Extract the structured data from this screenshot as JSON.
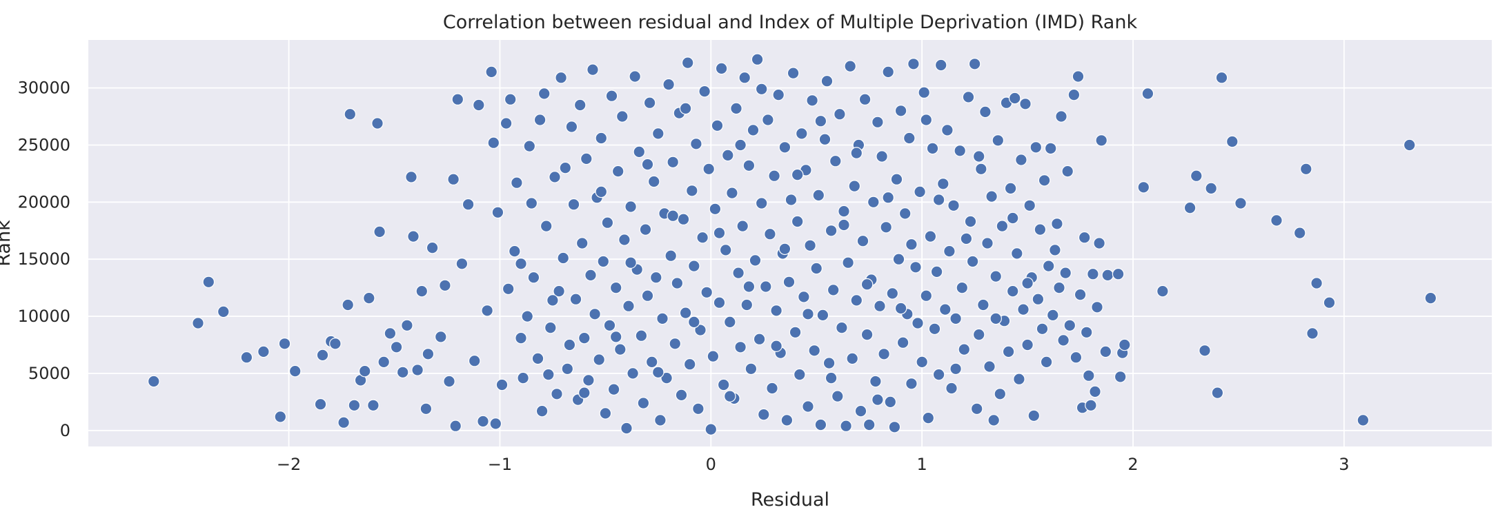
{
  "chart_data": {
    "type": "scatter",
    "title": "Correlation between residual and Index of Multiple Deprivation (IMD) Rank",
    "xlabel": "Residual",
    "ylabel": "Rank",
    "xlim": [
      -2.95,
      3.7
    ],
    "ylim": [
      -1400,
      34200
    ],
    "xticks": [
      -2,
      -1,
      0,
      1,
      2,
      3
    ],
    "xtick_labels": [
      "−2",
      "−1",
      "0",
      "1",
      "2",
      "3"
    ],
    "yticks": [
      0,
      5000,
      10000,
      15000,
      20000,
      25000,
      30000
    ],
    "ytick_labels": [
      "0",
      "5000",
      "10000",
      "15000",
      "20000",
      "25000",
      "30000"
    ],
    "grid": true,
    "style": {
      "background": "#eaeaf2",
      "marker_color": "#4c72b0",
      "grid_color": "#ffffff"
    },
    "points": [
      [
        -2.64,
        4300
      ],
      [
        -2.43,
        9400
      ],
      [
        -2.38,
        13000
      ],
      [
        -2.31,
        10400
      ],
      [
        -2.2,
        6400
      ],
      [
        -2.12,
        6900
      ],
      [
        -2.04,
        1200
      ],
      [
        -2.02,
        7600
      ],
      [
        -1.97,
        5200
      ],
      [
        -1.85,
        2300
      ],
      [
        -1.84,
        6600
      ],
      [
        -1.8,
        7800
      ],
      [
        -1.78,
        7600
      ],
      [
        -1.74,
        700
      ],
      [
        -1.72,
        11000
      ],
      [
        -1.71,
        27700
      ],
      [
        -1.69,
        2200
      ],
      [
        -1.66,
        4400
      ],
      [
        -1.64,
        5200
      ],
      [
        -1.62,
        11600
      ],
      [
        -1.6,
        2200
      ],
      [
        -1.58,
        26900
      ],
      [
        -1.57,
        17400
      ],
      [
        -1.55,
        6000
      ],
      [
        -1.52,
        8500
      ],
      [
        -1.49,
        7300
      ],
      [
        -1.46,
        5100
      ],
      [
        -1.44,
        9200
      ],
      [
        -1.42,
        22200
      ],
      [
        -1.41,
        17000
      ],
      [
        -1.39,
        5300
      ],
      [
        -1.37,
        12200
      ],
      [
        -1.35,
        1900
      ],
      [
        -1.34,
        6700
      ],
      [
        -1.32,
        16000
      ],
      [
        -1.28,
        8200
      ],
      [
        -1.26,
        12700
      ],
      [
        -1.24,
        4300
      ],
      [
        -1.22,
        22000
      ],
      [
        -1.21,
        400
      ],
      [
        -1.2,
        29000
      ],
      [
        -1.18,
        14600
      ],
      [
        -1.15,
        19800
      ],
      [
        -1.12,
        6100
      ],
      [
        -1.1,
        28500
      ],
      [
        -1.08,
        800
      ],
      [
        -1.06,
        10500
      ],
      [
        -1.04,
        31400
      ],
      [
        -1.03,
        25200
      ],
      [
        -1.02,
        600
      ],
      [
        -1.01,
        19100
      ],
      [
        -0.99,
        4000
      ],
      [
        -0.97,
        26900
      ],
      [
        -0.96,
        12400
      ],
      [
        -0.93,
        15700
      ],
      [
        -0.92,
        21700
      ],
      [
        -0.9,
        8100
      ],
      [
        -0.89,
        4600
      ],
      [
        -0.87,
        10000
      ],
      [
        -0.86,
        24900
      ],
      [
        -0.84,
        13400
      ],
      [
        -0.82,
        6300
      ],
      [
        -0.8,
        1700
      ],
      [
        -0.79,
        29500
      ],
      [
        -0.78,
        17900
      ],
      [
        -0.76,
        9000
      ],
      [
        -0.74,
        22200
      ],
      [
        -0.73,
        3200
      ],
      [
        -0.72,
        12200
      ],
      [
        -0.71,
        30900
      ],
      [
        -0.7,
        15100
      ],
      [
        -0.68,
        5400
      ],
      [
        -0.67,
        7500
      ],
      [
        -0.66,
        26600
      ],
      [
        -0.65,
        19800
      ],
      [
        -0.64,
        11500
      ],
      [
        -0.63,
        2700
      ],
      [
        -0.62,
        28500
      ],
      [
        -0.61,
        16400
      ],
      [
        -0.6,
        8100
      ],
      [
        -0.59,
        23800
      ],
      [
        -0.58,
        4400
      ],
      [
        -0.57,
        13600
      ],
      [
        -0.56,
        31600
      ],
      [
        -0.55,
        10200
      ],
      [
        -0.54,
        20400
      ],
      [
        -0.53,
        6200
      ],
      [
        -0.52,
        25600
      ],
      [
        -0.51,
        14800
      ],
      [
        -0.5,
        1500
      ],
      [
        -0.49,
        18200
      ],
      [
        -0.48,
        9200
      ],
      [
        -0.47,
        29300
      ],
      [
        -0.46,
        3600
      ],
      [
        -0.45,
        12500
      ],
      [
        -0.44,
        22700
      ],
      [
        -0.43,
        7100
      ],
      [
        -0.42,
        27500
      ],
      [
        -0.41,
        16700
      ],
      [
        -0.4,
        200
      ],
      [
        -0.39,
        10900
      ],
      [
        -0.38,
        19600
      ],
      [
        -0.37,
        5000
      ],
      [
        -0.36,
        31000
      ],
      [
        -0.35,
        14100
      ],
      [
        -0.34,
        24400
      ],
      [
        -0.33,
        8300
      ],
      [
        -0.32,
        2400
      ],
      [
        -0.31,
        17600
      ],
      [
        -0.3,
        11800
      ],
      [
        -0.29,
        28700
      ],
      [
        -0.28,
        6000
      ],
      [
        -0.27,
        21800
      ],
      [
        -0.26,
        13400
      ],
      [
        -0.25,
        26000
      ],
      [
        -0.24,
        900
      ],
      [
        -0.23,
        9800
      ],
      [
        -0.22,
        19000
      ],
      [
        -0.21,
        4600
      ],
      [
        -0.2,
        30300
      ],
      [
        -0.19,
        15300
      ],
      [
        -0.18,
        23500
      ],
      [
        -0.17,
        7600
      ],
      [
        -0.16,
        12900
      ],
      [
        -0.15,
        27800
      ],
      [
        -0.14,
        3100
      ],
      [
        -0.13,
        18500
      ],
      [
        -0.12,
        10300
      ],
      [
        -0.11,
        32200
      ],
      [
        -0.1,
        5800
      ],
      [
        -0.09,
        21000
      ],
      [
        -0.08,
        14400
      ],
      [
        -0.07,
        25100
      ],
      [
        -0.06,
        1900
      ],
      [
        -0.05,
        8800
      ],
      [
        -0.04,
        16900
      ],
      [
        -0.03,
        29700
      ],
      [
        -0.02,
        12100
      ],
      [
        -0.01,
        22900
      ],
      [
        0.0,
        100
      ],
      [
        0.01,
        6500
      ],
      [
        0.02,
        19400
      ],
      [
        0.03,
        26700
      ],
      [
        0.04,
        11200
      ],
      [
        0.05,
        31700
      ],
      [
        0.06,
        4000
      ],
      [
        0.07,
        15800
      ],
      [
        0.08,
        24100
      ],
      [
        0.09,
        9500
      ],
      [
        0.1,
        20800
      ],
      [
        0.11,
        2800
      ],
      [
        0.12,
        28200
      ],
      [
        0.13,
        13800
      ],
      [
        0.14,
        7300
      ],
      [
        0.15,
        17900
      ],
      [
        0.16,
        30900
      ],
      [
        0.17,
        11000
      ],
      [
        0.18,
        23200
      ],
      [
        0.19,
        5400
      ],
      [
        0.2,
        26300
      ],
      [
        0.21,
        14900
      ],
      [
        0.22,
        32500
      ],
      [
        0.23,
        8000
      ],
      [
        0.24,
        19900
      ],
      [
        0.25,
        1400
      ],
      [
        0.26,
        12600
      ],
      [
        0.27,
        27200
      ],
      [
        0.28,
        17200
      ],
      [
        0.29,
        3700
      ],
      [
        0.3,
        22300
      ],
      [
        0.31,
        10500
      ],
      [
        0.32,
        29400
      ],
      [
        0.33,
        6800
      ],
      [
        0.34,
        15500
      ],
      [
        0.35,
        24800
      ],
      [
        0.36,
        900
      ],
      [
        0.37,
        13000
      ],
      [
        0.38,
        20200
      ],
      [
        0.39,
        31300
      ],
      [
        0.4,
        8600
      ],
      [
        0.41,
        18300
      ],
      [
        0.42,
        4900
      ],
      [
        0.43,
        26000
      ],
      [
        0.44,
        11700
      ],
      [
        0.45,
        22800
      ],
      [
        0.46,
        2100
      ],
      [
        0.47,
        16200
      ],
      [
        0.48,
        28900
      ],
      [
        0.49,
        7000
      ],
      [
        0.5,
        14200
      ],
      [
        0.51,
        20600
      ],
      [
        0.52,
        500
      ],
      [
        0.53,
        10100
      ],
      [
        0.54,
        25500
      ],
      [
        0.55,
        30600
      ],
      [
        0.56,
        5900
      ],
      [
        0.57,
        17500
      ],
      [
        0.58,
        12300
      ],
      [
        0.59,
        23600
      ],
      [
        0.6,
        3000
      ],
      [
        0.61,
        27700
      ],
      [
        0.62,
        9000
      ],
      [
        0.63,
        19200
      ],
      [
        0.64,
        400
      ],
      [
        0.65,
        14700
      ],
      [
        0.66,
        31900
      ],
      [
        0.67,
        6300
      ],
      [
        0.68,
        21400
      ],
      [
        0.69,
        11400
      ],
      [
        0.7,
        25000
      ],
      [
        0.71,
        1700
      ],
      [
        0.72,
        16600
      ],
      [
        0.73,
        29000
      ],
      [
        0.74,
        8400
      ],
      [
        0.75,
        500
      ],
      [
        0.76,
        13200
      ],
      [
        0.77,
        20000
      ],
      [
        0.78,
        4300
      ],
      [
        0.79,
        27000
      ],
      [
        0.8,
        10900
      ],
      [
        0.81,
        24000
      ],
      [
        0.82,
        6700
      ],
      [
        0.83,
        17800
      ],
      [
        0.84,
        31400
      ],
      [
        0.85,
        2500
      ],
      [
        0.86,
        12000
      ],
      [
        0.87,
        300
      ],
      [
        0.88,
        22000
      ],
      [
        0.89,
        15000
      ],
      [
        0.9,
        28000
      ],
      [
        0.91,
        7700
      ],
      [
        0.92,
        19000
      ],
      [
        0.93,
        10200
      ],
      [
        0.94,
        25600
      ],
      [
        0.95,
        4100
      ],
      [
        0.96,
        32100
      ],
      [
        0.97,
        14300
      ],
      [
        0.98,
        9400
      ],
      [
        0.99,
        20900
      ],
      [
        1.0,
        6000
      ],
      [
        1.01,
        29600
      ],
      [
        1.02,
        11800
      ],
      [
        1.03,
        1100
      ],
      [
        1.04,
        17000
      ],
      [
        1.05,
        24700
      ],
      [
        1.06,
        8900
      ],
      [
        1.07,
        13900
      ],
      [
        1.08,
        4900
      ],
      [
        1.09,
        32000
      ],
      [
        1.1,
        21600
      ],
      [
        1.11,
        10600
      ],
      [
        1.12,
        26300
      ],
      [
        1.13,
        15700
      ],
      [
        1.14,
        3700
      ],
      [
        1.15,
        19700
      ],
      [
        1.16,
        9800
      ],
      [
        1.18,
        24500
      ],
      [
        1.19,
        12500
      ],
      [
        1.2,
        7100
      ],
      [
        1.22,
        29200
      ],
      [
        1.23,
        18300
      ],
      [
        1.24,
        14800
      ],
      [
        1.25,
        32100
      ],
      [
        1.26,
        1900
      ],
      [
        1.27,
        8400
      ],
      [
        1.28,
        22900
      ],
      [
        1.29,
        11000
      ],
      [
        1.3,
        27900
      ],
      [
        1.31,
        16400
      ],
      [
        1.32,
        5600
      ],
      [
        1.33,
        20500
      ],
      [
        1.34,
        900
      ],
      [
        1.35,
        13500
      ],
      [
        1.36,
        25400
      ],
      [
        1.37,
        3200
      ],
      [
        1.38,
        17900
      ],
      [
        1.39,
        9600
      ],
      [
        1.4,
        28700
      ],
      [
        1.41,
        6900
      ],
      [
        1.42,
        21200
      ],
      [
        1.43,
        12200
      ],
      [
        1.44,
        29100
      ],
      [
        1.45,
        15500
      ],
      [
        1.46,
        4500
      ],
      [
        1.47,
        23700
      ],
      [
        1.48,
        10600
      ],
      [
        1.49,
        28600
      ],
      [
        1.5,
        7500
      ],
      [
        1.51,
        19700
      ],
      [
        1.52,
        13400
      ],
      [
        1.53,
        1300
      ],
      [
        1.54,
        24800
      ],
      [
        1.55,
        11500
      ],
      [
        1.56,
        17600
      ],
      [
        1.57,
        8900
      ],
      [
        1.58,
        21900
      ],
      [
        1.59,
        6000
      ],
      [
        1.6,
        14400
      ],
      [
        1.61,
        24700
      ],
      [
        1.62,
        10100
      ],
      [
        1.63,
        15800
      ],
      [
        1.64,
        18100
      ],
      [
        1.65,
        12500
      ],
      [
        1.66,
        27500
      ],
      [
        1.67,
        7900
      ],
      [
        1.68,
        13800
      ],
      [
        1.69,
        22700
      ],
      [
        1.7,
        9200
      ],
      [
        1.72,
        29400
      ],
      [
        1.73,
        6400
      ],
      [
        1.74,
        31000
      ],
      [
        1.75,
        11900
      ],
      [
        1.76,
        2000
      ],
      [
        1.77,
        16900
      ],
      [
        1.78,
        8600
      ],
      [
        1.79,
        4800
      ],
      [
        1.8,
        2200
      ],
      [
        1.81,
        13700
      ],
      [
        1.82,
        3400
      ],
      [
        1.83,
        10800
      ],
      [
        1.84,
        16400
      ],
      [
        1.85,
        25400
      ],
      [
        1.87,
        6900
      ],
      [
        1.88,
        13600
      ],
      [
        1.93,
        13700
      ],
      [
        1.94,
        4700
      ],
      [
        1.95,
        6800
      ],
      [
        1.96,
        7500
      ],
      [
        2.05,
        21300
      ],
      [
        2.07,
        29500
      ],
      [
        2.14,
        12200
      ],
      [
        2.27,
        19500
      ],
      [
        2.3,
        22300
      ],
      [
        2.34,
        7000
      ],
      [
        2.37,
        21200
      ],
      [
        2.4,
        3300
      ],
      [
        2.42,
        30900
      ],
      [
        2.47,
        25300
      ],
      [
        2.51,
        19900
      ],
      [
        2.68,
        18400
      ],
      [
        2.79,
        17300
      ],
      [
        2.82,
        22900
      ],
      [
        2.85,
        8500
      ],
      [
        2.87,
        12900
      ],
      [
        2.93,
        11200
      ],
      [
        3.09,
        900
      ],
      [
        3.31,
        25000
      ],
      [
        3.41,
        11600
      ],
      [
        -0.95,
        29000
      ],
      [
        -0.9,
        14600
      ],
      [
        -0.85,
        19900
      ],
      [
        -0.81,
        27200
      ],
      [
        -0.77,
        4900
      ],
      [
        -0.75,
        11400
      ],
      [
        -0.69,
        23000
      ],
      [
        -0.6,
        3300
      ],
      [
        -0.52,
        20900
      ],
      [
        -0.45,
        8200
      ],
      [
        -0.38,
        14700
      ],
      [
        -0.3,
        23300
      ],
      [
        -0.25,
        5100
      ],
      [
        -0.18,
        18800
      ],
      [
        -0.12,
        28200
      ],
      [
        -0.08,
        9500
      ],
      [
        0.04,
        17300
      ],
      [
        0.09,
        3000
      ],
      [
        0.14,
        25000
      ],
      [
        0.18,
        12600
      ],
      [
        0.24,
        29900
      ],
      [
        0.31,
        7400
      ],
      [
        0.35,
        15900
      ],
      [
        0.41,
        22400
      ],
      [
        0.46,
        10200
      ],
      [
        0.52,
        27100
      ],
      [
        0.57,
        4600
      ],
      [
        0.63,
        18000
      ],
      [
        0.69,
        24300
      ],
      [
        0.74,
        12800
      ],
      [
        0.79,
        2700
      ],
      [
        0.84,
        20400
      ],
      [
        0.9,
        10700
      ],
      [
        0.95,
        16300
      ],
      [
        1.02,
        27200
      ],
      [
        1.08,
        20200
      ],
      [
        1.16,
        5400
      ],
      [
        1.21,
        16800
      ],
      [
        1.27,
        24000
      ],
      [
        1.35,
        9800
      ],
      [
        1.43,
        18600
      ],
      [
        1.5,
        12900
      ]
    ]
  }
}
